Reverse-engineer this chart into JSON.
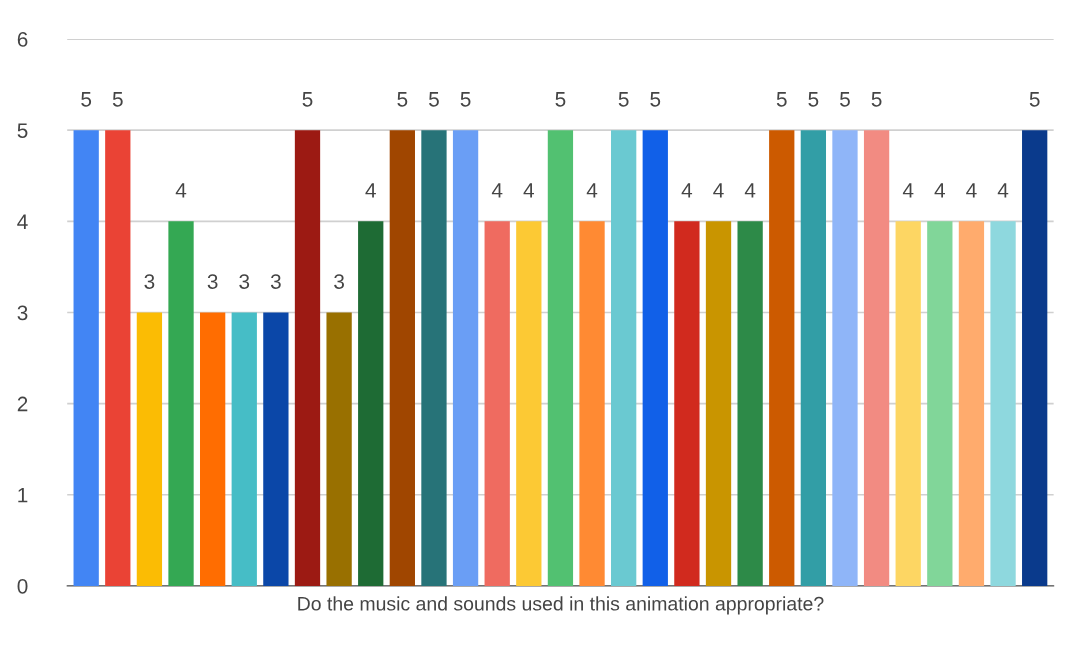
{
  "chart_data": {
    "type": "bar",
    "xlabel": "Do the music and sounds used in this animation appropriate?",
    "categories": [
      null,
      null,
      null,
      null,
      null,
      null,
      null,
      null,
      null,
      null,
      null,
      null,
      null,
      null,
      null,
      null,
      null,
      null,
      null,
      null,
      null,
      null,
      null,
      null,
      null,
      null,
      null,
      null,
      null,
      null,
      null
    ],
    "values": [
      5,
      5,
      3,
      4,
      3,
      3,
      3,
      5,
      3,
      4,
      5,
      5,
      5,
      4,
      4,
      5,
      4,
      5,
      5,
      4,
      4,
      4,
      5,
      5,
      5,
      5,
      4,
      4,
      4,
      4,
      5
    ],
    "colors": [
      "#4285f4",
      "#ea4335",
      "#fbbc04",
      "#34a853",
      "#ff6d01",
      "#46bdc6",
      "#0b47a8",
      "#9c1a13",
      "#997000",
      "#1e6b34",
      "#a04600",
      "#277378",
      "#6a9ef5",
      "#ef6b60",
      "#fcc934",
      "#52c171",
      "#ff8a33",
      "#6ac9d1",
      "#1160e8",
      "#d12a1e",
      "#c99500",
      "#2d8a48",
      "#cc5a00",
      "#329ea6",
      "#8fb5f8",
      "#f28b82",
      "#fdd663",
      "#81d699",
      "#ffab6d",
      "#8ed8de",
      "#0a3a8c"
    ],
    "ylim": [
      0,
      6
    ],
    "yticks": [
      0,
      1,
      2,
      3,
      4,
      5,
      6
    ],
    "grid": "y",
    "data_labels": true
  }
}
